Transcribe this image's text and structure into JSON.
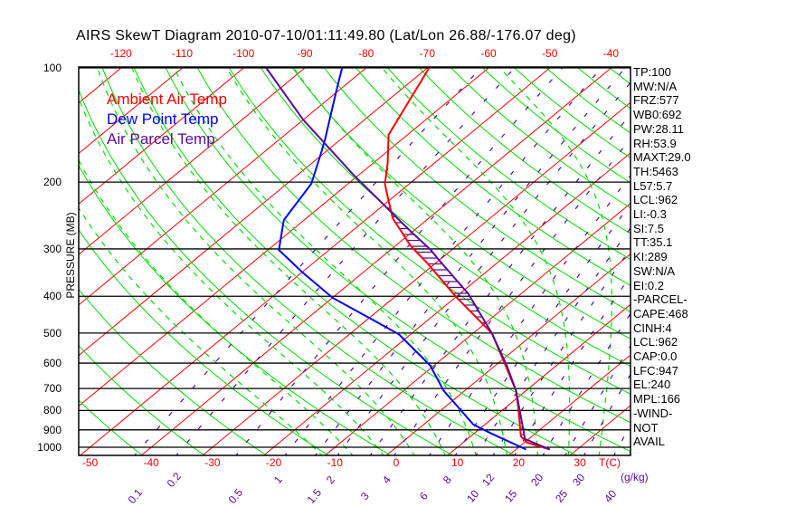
{
  "title": "AIRS SkewT Diagram 2010-07-10/01:11:49.80 (Lat/Lon 26.88/-176.07 deg)",
  "legend": [
    {
      "label": "Ambient Air Temp",
      "color": "#ff0000"
    },
    {
      "label": "Dew Point Temp",
      "color": "#0000ff"
    },
    {
      "label": "Air Parcel Temp",
      "color": "#5a0a9a"
    }
  ],
  "side_panel": [
    "TP:100",
    "MW:N/A",
    "FRZ:577",
    "WB0:692",
    "PW:28.11",
    "RH:53.9",
    "MAXT:29.0",
    "TH:5463",
    "L57:5.7",
    "LCL:962",
    "LI:-0.3",
    "SI:7.5",
    "TT:35.1",
    "KI:289",
    "SW:N/A",
    "EI:0.2",
    "-PARCEL-",
    "CAPE:468",
    "CINH:4",
    "LCL:962",
    "CAP:0.0",
    "LFC:947",
    "EL:240",
    "MPL:166",
    "-WIND-",
    "NOT",
    "AVAIL"
  ],
  "chart_data": {
    "type": "line",
    "subtype": "skew-t log-p",
    "title": "AIRS SkewT Diagram 2010-07-10/01:11:49.80 (Lat/Lon 26.88/-176.07 deg)",
    "ylabel": "PRESSURE (MB)",
    "xlabel": "T(C)",
    "mixing_ratio_unit": "(g/kg)",
    "ylim": [
      1000,
      100
    ],
    "pressure_ticks": [
      "100",
      "200",
      "300",
      "400",
      "500",
      "600",
      "700",
      "800",
      "900",
      "1000"
    ],
    "pressure_tick_values": [
      100,
      200,
      300,
      400,
      500,
      600,
      700,
      800,
      900,
      1000
    ],
    "bottom_temp_ticks": [
      "-50",
      "-40",
      "-30",
      "-20",
      "-10",
      "0",
      "10",
      "20",
      "30"
    ],
    "bottom_temp_values": [
      -50,
      -40,
      -30,
      -20,
      -10,
      0,
      10,
      20,
      30
    ],
    "top_temp_ticks": [
      "-120",
      "-110",
      "-100",
      "-90",
      "-80",
      "-70",
      "-60",
      "-50",
      "-40"
    ],
    "top_temp_values": [
      -120,
      -110,
      -100,
      -90,
      -80,
      -70,
      -60,
      -50,
      -40
    ],
    "mixing_ratio_ticks": [
      "0.1",
      "0.2",
      "0.5",
      "1",
      "1.5",
      "2",
      "3",
      "4",
      "6",
      "8",
      "10",
      "12",
      "15",
      "20",
      "25",
      "30",
      "40"
    ],
    "mixing_ratio_values": [
      0.1,
      0.2,
      0.5,
      1,
      1.5,
      2,
      3,
      4,
      6,
      8,
      10,
      12,
      15,
      20,
      25,
      30,
      40
    ],
    "series": [
      {
        "name": "Ambient Air Temp",
        "color": "#ff0000",
        "points": [
          [
            1013,
            25.5
          ],
          [
            973,
            20.5
          ],
          [
            936,
            18.2
          ],
          [
            793,
            12.4
          ],
          [
            710,
            8.4
          ],
          [
            601,
            1.1
          ],
          [
            501,
            -6.9
          ],
          [
            402,
            -19.9
          ],
          [
            328,
            -31.2
          ],
          [
            294,
            -37.6
          ],
          [
            249,
            -45.9
          ],
          [
            219,
            -50.9
          ],
          [
            202,
            -54.0
          ],
          [
            179,
            -57.5
          ],
          [
            150,
            -63.1
          ],
          [
            100,
            -69.7
          ]
        ]
      },
      {
        "name": "Dew Point Temp",
        "color": "#0000ff",
        "points": [
          [
            1013,
            21.6
          ],
          [
            920,
            12.8
          ],
          [
            871,
            8.1
          ],
          [
            710,
            -3.4
          ],
          [
            608,
            -10.7
          ],
          [
            504,
            -21.9
          ],
          [
            456,
            -30.0
          ],
          [
            404,
            -39.9
          ],
          [
            346,
            -49.9
          ],
          [
            302,
            -58.2
          ],
          [
            252,
            -63.3
          ],
          [
            202,
            -66.0
          ],
          [
            169,
            -70.3
          ],
          [
            154,
            -72.6
          ],
          [
            115,
            -80.3
          ],
          [
            100,
            -83.9
          ]
        ]
      },
      {
        "name": "Air Parcel Temp",
        "color": "#5a0a9a",
        "points": [
          [
            1013,
            25.5
          ],
          [
            951,
            19.4
          ],
          [
            710,
            8.4
          ],
          [
            612,
            2.1
          ],
          [
            501,
            -6.9
          ],
          [
            394,
            -18.6
          ],
          [
            319,
            -30.4
          ],
          [
            302,
            -33.4
          ],
          [
            266,
            -41.2
          ],
          [
            239,
            -47.6
          ],
          [
            192,
            -60.7
          ],
          [
            137,
            -80.0
          ],
          [
            100,
            -96.3
          ]
        ]
      }
    ],
    "grid": true
  }
}
